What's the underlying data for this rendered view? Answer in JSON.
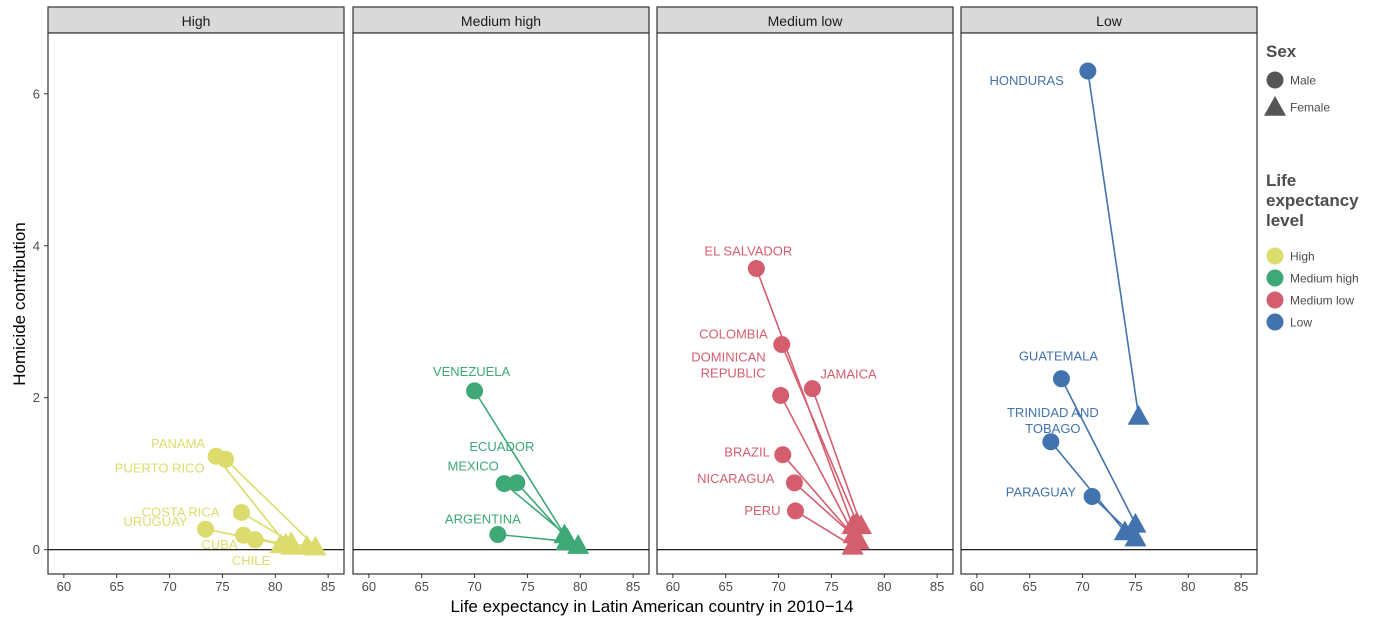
{
  "chart_data": {
    "type": "scatter",
    "facet_variable": "Life expectancy level",
    "panels": [
      "High",
      "Medium high",
      "Medium low",
      "Low"
    ],
    "xlabel": "Life expectancy in Latin American country in 2010−14",
    "ylabel": "Homicide contribution",
    "xlim": [
      58.5,
      86.5
    ],
    "ylim": [
      -0.32,
      6.8
    ],
    "xticks": [
      60,
      65,
      70,
      75,
      80,
      85
    ],
    "yticks": [
      0,
      2,
      4,
      6
    ],
    "grid": false,
    "colors": {
      "High": "#dcdc6e",
      "Medium high": "#3ea877",
      "Medium low": "#d55e6e",
      "Low": "#4273ae"
    },
    "legend": {
      "position": "right",
      "sex_title": "Sex",
      "sex_items": [
        {
          "label": "Male",
          "shape": "circle"
        },
        {
          "label": "Female",
          "shape": "triangle"
        }
      ],
      "level_title": [
        "Life",
        "expectancy",
        "level"
      ],
      "level_items": [
        "High",
        "Medium high",
        "Medium low",
        "Low"
      ]
    },
    "countries": [
      {
        "name": "PANAMA",
        "level": "High",
        "male": [
          74.4,
          1.23
        ],
        "female": [
          81.0,
          0.08
        ]
      },
      {
        "name": "PUERTO RICO",
        "level": "High",
        "male": [
          75.3,
          1.19
        ],
        "female": [
          83.8,
          0.04
        ]
      },
      {
        "name": "COSTA RICA",
        "level": "High",
        "male": [
          76.8,
          0.49
        ],
        "female": [
          81.5,
          0.1
        ]
      },
      {
        "name": "URUGUAY",
        "level": "High",
        "male": [
          73.4,
          0.27
        ],
        "female": [
          80.5,
          0.07
        ]
      },
      {
        "name": "CUBA",
        "level": "High",
        "male": [
          77.0,
          0.19
        ],
        "female": [
          81.5,
          0.05
        ]
      },
      {
        "name": "CHILE",
        "level": "High",
        "male": [
          78.1,
          0.13
        ],
        "female": [
          83.0,
          0.05
        ]
      },
      {
        "name": "VENEZUELA",
        "level": "Medium high",
        "male": [
          70.0,
          2.09
        ],
        "female": [
          78.5,
          0.2
        ]
      },
      {
        "name": "ECUADOR",
        "level": "Medium high",
        "male": [
          74.0,
          0.88
        ],
        "female": [
          78.8,
          0.14
        ]
      },
      {
        "name": "MEXICO",
        "level": "Medium high",
        "male": [
          72.8,
          0.87
        ],
        "female": [
          79.8,
          0.06
        ]
      },
      {
        "name": "ARGENTINA",
        "level": "Medium high",
        "male": [
          72.2,
          0.2
        ],
        "female": [
          78.7,
          0.11
        ]
      },
      {
        "name": "EL SALVADOR",
        "level": "Medium low",
        "male": [
          67.9,
          3.7
        ],
        "female": [
          77.0,
          0.32
        ]
      },
      {
        "name": "COLOMBIA",
        "level": "Medium low",
        "male": [
          70.3,
          2.7
        ],
        "female": [
          77.4,
          0.36
        ]
      },
      {
        "name": "JAMAICA",
        "level": "Medium low",
        "male": [
          73.2,
          2.12
        ],
        "female": [
          77.8,
          0.32
        ]
      },
      {
        "name": "DOMINICAN\nREPUBLIC",
        "level": "Medium low",
        "male": [
          70.2,
          2.03
        ],
        "female": [
          77.1,
          0.2
        ]
      },
      {
        "name": "BRAZIL",
        "level": "Medium low",
        "male": [
          70.4,
          1.25
        ],
        "female": [
          77.4,
          0.13
        ]
      },
      {
        "name": "NICARAGUA",
        "level": "Medium low",
        "male": [
          71.5,
          0.88
        ],
        "female": [
          77.6,
          0.12
        ]
      },
      {
        "name": "PERU",
        "level": "Medium low",
        "male": [
          71.6,
          0.51
        ],
        "female": [
          77.0,
          0.05
        ]
      },
      {
        "name": "HONDURAS",
        "level": "Low",
        "male": [
          70.5,
          6.3
        ],
        "female": [
          75.3,
          1.76
        ]
      },
      {
        "name": "GUATEMALA",
        "level": "Low",
        "male": [
          68.0,
          2.25
        ],
        "female": [
          75.0,
          0.34
        ]
      },
      {
        "name": "TRINIDAD AND\nTOBAGO",
        "level": "Low",
        "male": [
          67.0,
          1.42
        ],
        "female": [
          74.0,
          0.24
        ]
      },
      {
        "name": "PARAGUAY",
        "level": "Low",
        "male": [
          70.9,
          0.7
        ],
        "female": [
          75.0,
          0.16
        ]
      }
    ]
  }
}
